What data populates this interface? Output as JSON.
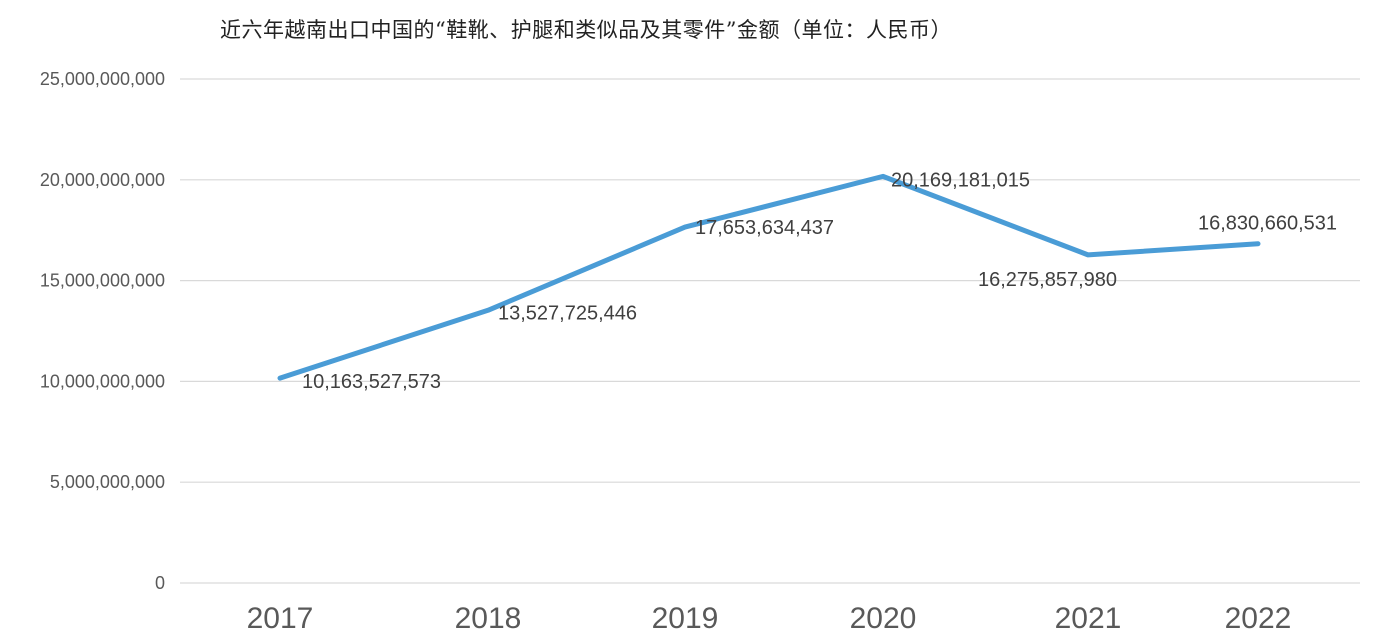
{
  "chart_data": {
    "type": "line",
    "title": "近六年越南出口中国的“鞋靴、护腿和类似品及其零件”金额（单位：人民币）",
    "xlabel": "",
    "ylabel": "",
    "categories": [
      "2017",
      "2018",
      "2019",
      "2020",
      "2021",
      "2022"
    ],
    "series": [
      {
        "values": [
          10163527573,
          13527725446,
          17653634437,
          20169181015,
          16275857980,
          16830660531
        ],
        "color": "#4a9cd6"
      }
    ],
    "data_labels": [
      "10,163,527,573",
      "13,527,725,446",
      "17,653,634,437",
      "20,169,181,015",
      "16,275,857,980",
      "16,830,660,531"
    ],
    "ylim": [
      0,
      25000000000
    ],
    "yticks": [
      0,
      5000000000,
      10000000000,
      15000000000,
      20000000000,
      25000000000
    ],
    "ytick_labels": [
      "0",
      "5,000,000,000",
      "10,000,000,000",
      "15,000,000,000",
      "20,000,000,000",
      "25,000,000,000"
    ],
    "grid": true,
    "legend": "none"
  }
}
